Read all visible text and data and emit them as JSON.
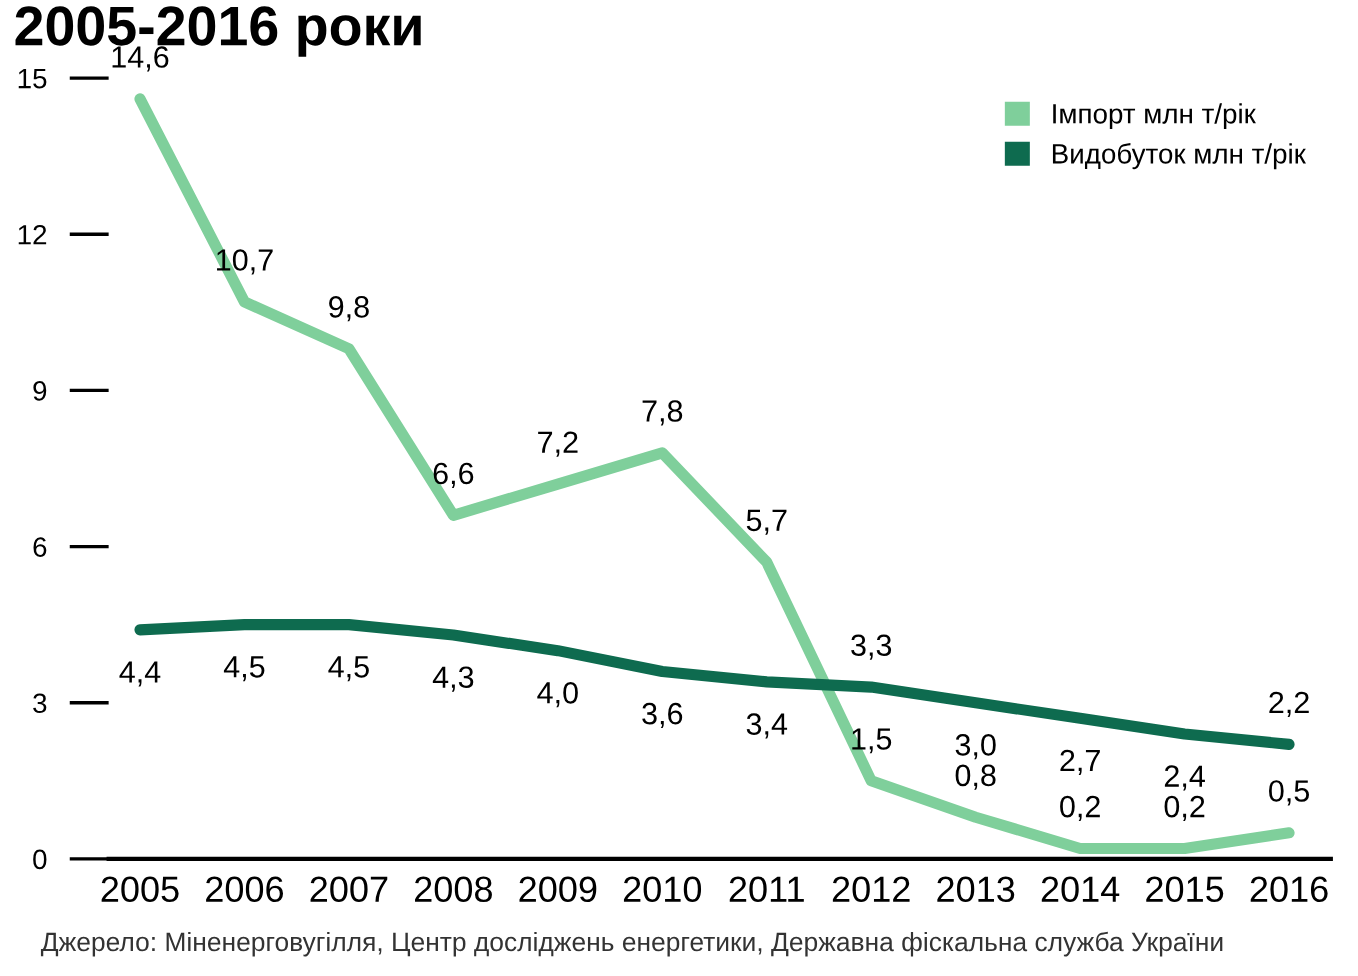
{
  "chart_data": {
    "type": "line",
    "title": "2005-2016 роки",
    "categories": [
      "2005",
      "2006",
      "2007",
      "2008",
      "2009",
      "2010",
      "2011",
      "2012",
      "2013",
      "2014",
      "2015",
      "2016"
    ],
    "series": [
      {
        "name": "Імпорт млн т/рік",
        "color": "#7fcf9b",
        "values": [
          14.6,
          10.7,
          9.8,
          6.6,
          7.2,
          7.8,
          5.7,
          1.5,
          0.8,
          0.2,
          0.2,
          0.5
        ],
        "value_labels": [
          "14,6",
          "10,7",
          "9,8",
          "6,6",
          "7,2",
          "7,8",
          "5,7",
          "1,5",
          "0,8",
          "0,2",
          "0,2",
          "0,5"
        ]
      },
      {
        "name": "Видобуток млн т/рік",
        "color": "#0e6b4f",
        "values": [
          4.4,
          4.5,
          4.5,
          4.3,
          4.0,
          3.6,
          3.4,
          3.3,
          3.0,
          2.7,
          2.4,
          2.2
        ],
        "value_labels": [
          "4,4",
          "4,5",
          "4,5",
          "4,3",
          "4,0",
          "3,6",
          "3,4",
          "3,3",
          "3,0",
          "2,7",
          "2,4",
          "2,2"
        ]
      }
    ],
    "ylim": [
      0,
      15
    ],
    "yticks": [
      0,
      3,
      6,
      9,
      12,
      15
    ],
    "grid": false,
    "legend": "top right",
    "marker": "none",
    "line_style": "solid",
    "annotations": [
      "Джерело: Міненерговугілля, Центр досліджень енергетики, Державна фіскальна служба України"
    ]
  }
}
